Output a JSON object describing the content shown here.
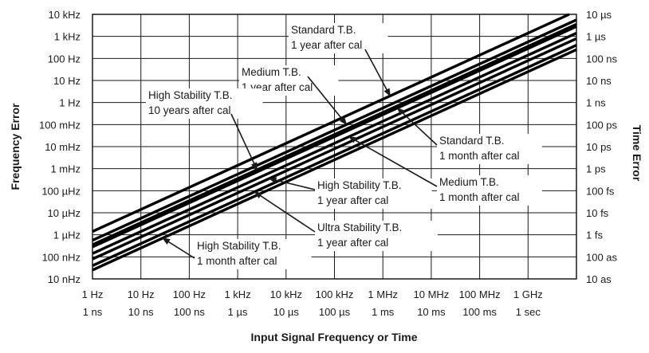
{
  "chart_data": {
    "type": "line",
    "xlabel": "Input Signal Frequency or Time",
    "ylabel_left": "Frequency Error",
    "ylabel_right": "Time Error",
    "x_ticks_frequency": [
      "1 Hz",
      "10 Hz",
      "100 Hz",
      "1 kHz",
      "10 kHz",
      "100 kHz",
      "1 MHz",
      "10 MHz",
      "100 MHz",
      "1 GHz"
    ],
    "x_ticks_time": [
      "1 ns",
      "10 ns",
      "100 ns",
      "1 µs",
      "10 µs",
      "100 µs",
      "1 ms",
      "10 ms",
      "100 ms",
      "1 sec"
    ],
    "y_ticks_left": [
      "10 kHz",
      "1 kHz",
      "100 Hz",
      "10 Hz",
      "1 Hz",
      "100 mHz",
      "10 mHz",
      "1 mHz",
      "100 µHz",
      "10 µHz",
      "1 µHz",
      "100 nHz",
      "10 nHz"
    ],
    "y_ticks_right": [
      "10 µs",
      "1 µs",
      "100 ns",
      "10 ns",
      "1 ns",
      "100 ps",
      "10 ps",
      "1 ps",
      "100 fs",
      "10 fs",
      "1 fs",
      "100 as",
      "10 as"
    ],
    "x_log_range_decades": [
      0,
      10
    ],
    "y_log_range_hz": [
      -8,
      4
    ],
    "grid": true,
    "series": [
      {
        "name": "Standard T.B. 1 year after cal",
        "x_log": [
          0,
          10
        ],
        "y_log": [
          -5.85,
          4.15
        ]
      },
      {
        "name": "Medium T.B. 1 year after cal",
        "x_log": [
          0,
          10
        ],
        "y_log": [
          -6.25,
          3.75
        ]
      },
      {
        "name": "Standard T.B. 1 month after cal",
        "x_log": [
          0,
          10
        ],
        "y_log": [
          -6.55,
          3.45
        ]
      },
      {
        "name": "High Stability T.B. 10 years after cal",
        "x_log": [
          0,
          10
        ],
        "y_log": [
          -6.45,
          3.55
        ]
      },
      {
        "name": "Medium T.B. 1 month after cal",
        "x_log": [
          0,
          10
        ],
        "y_log": [
          -6.85,
          3.15
        ]
      },
      {
        "name": "High Stability T.B. 1 year after cal",
        "x_log": [
          0,
          10
        ],
        "y_log": [
          -7.1,
          2.9
        ]
      },
      {
        "name": "Ultra Stability T.B. 1 year after cal",
        "x_log": [
          0,
          10
        ],
        "y_log": [
          -7.4,
          2.6
        ]
      },
      {
        "name": "High Stability T.B. 1 month after cal",
        "x_log": [
          0,
          10
        ],
        "y_log": [
          -7.6,
          2.4
        ]
      }
    ],
    "annotations": [
      {
        "line1": "Standard T.B.",
        "line2": "1 year after cal",
        "target_series": 0
      },
      {
        "line1": "Medium T.B.",
        "line2": "1 year after cal",
        "target_series": 1
      },
      {
        "line1": "High Stability T.B.",
        "line2": "10 years after cal",
        "target_series": 3
      },
      {
        "line1": "Standard T.B.",
        "line2": "1 month after cal",
        "target_series": 2
      },
      {
        "line1": "High Stability T.B.",
        "line2": "1 year after cal",
        "target_series": 5
      },
      {
        "line1": "Medium T.B.",
        "line2": "1 month after cal",
        "target_series": 4
      },
      {
        "line1": "Ultra Stability T.B.",
        "line2": "1 year after cal",
        "target_series": 6
      },
      {
        "line1": "High Stability T.B.",
        "line2": "1 month after cal",
        "target_series": 7
      }
    ]
  }
}
